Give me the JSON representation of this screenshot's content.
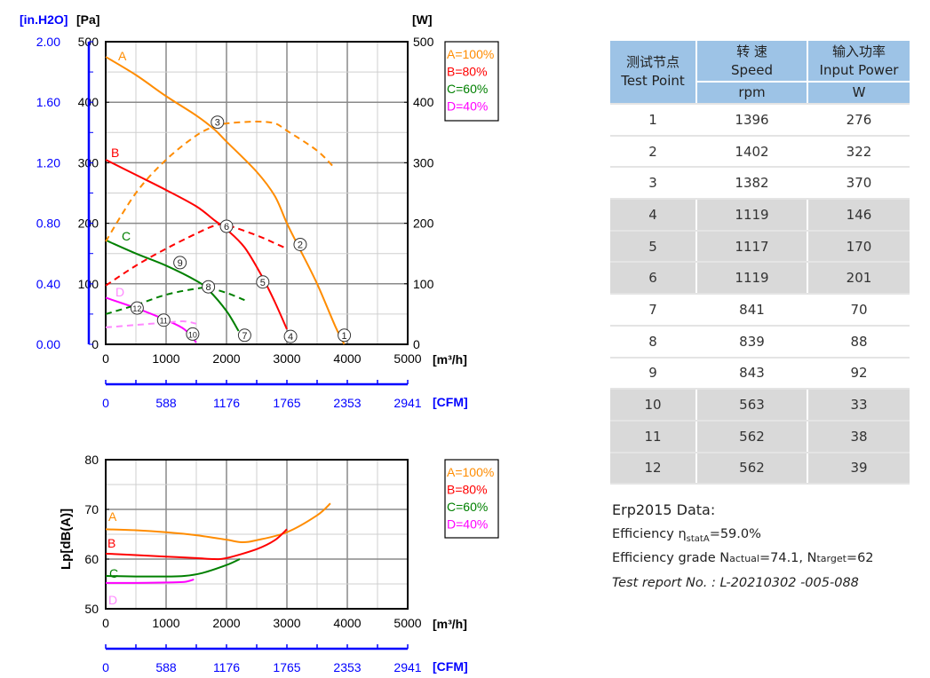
{
  "chart_data": [
    {
      "type": "line",
      "xlabel": "[m³/h]",
      "x2label": "[CFM]",
      "ylabel": "[Pa]",
      "ylabel_alt": "[in.H2O]",
      "y2label": "[W]",
      "xlim": [
        0,
        5000
      ],
      "ylim": [
        0,
        500
      ],
      "y2lim": [
        0,
        500
      ],
      "xticks": [
        "0",
        "1000",
        "2000",
        "3000",
        "4000",
        "5000"
      ],
      "x2ticks": [
        "0",
        "588",
        "1176",
        "1765",
        "2353",
        "2941"
      ],
      "yticks": [
        "0",
        "100",
        "200",
        "300",
        "400",
        "500"
      ],
      "yticks_alt": [
        "0.00",
        "0.40",
        "0.80",
        "1.20",
        "1.60",
        "2.00"
      ],
      "y2ticks": [
        "0",
        "100",
        "200",
        "300",
        "400",
        "500"
      ],
      "grid": true,
      "legend_position": "right",
      "legend": [
        "A=100%",
        "B=80%",
        "C=60%",
        "D=40%"
      ],
      "curve_labels": [
        "A",
        "B",
        "C",
        "D"
      ],
      "series": [
        {
          "name": "A=100%",
          "kind": "pressure",
          "color": "#ff8c00",
          "x": [
            0,
            500,
            1000,
            1500,
            1800,
            2000,
            2500,
            2800,
            3000,
            3200,
            3500,
            3800,
            3950
          ],
          "y": [
            475,
            445,
            410,
            378,
            355,
            335,
            285,
            245,
            200,
            160,
            100,
            30,
            0
          ]
        },
        {
          "name": "B=80%",
          "kind": "pressure",
          "color": "#ff0000",
          "x": [
            0,
            500,
            1000,
            1500,
            1800,
            2000,
            2300,
            2600,
            2800,
            3000
          ],
          "y": [
            305,
            280,
            255,
            228,
            205,
            190,
            160,
            110,
            70,
            25
          ]
        },
        {
          "name": "C=60%",
          "kind": "pressure",
          "color": "#008000",
          "x": [
            0,
            500,
            1000,
            1500,
            1700,
            2000,
            2200
          ],
          "y": [
            172,
            150,
            130,
            105,
            90,
            55,
            22
          ]
        },
        {
          "name": "D=40%",
          "kind": "pressure",
          "color": "#ff00ff",
          "x": [
            0,
            500,
            1000,
            1300,
            1500
          ],
          "y": [
            77,
            60,
            40,
            25,
            3
          ]
        },
        {
          "name": "A=100%",
          "kind": "power",
          "color": "#ff8c00",
          "x": [
            0,
            500,
            1000,
            1500,
            1800,
            2000,
            2500,
            2800,
            3000,
            3500,
            3800
          ],
          "y": [
            170,
            250,
            305,
            345,
            360,
            365,
            368,
            365,
            353,
            320,
            290
          ]
        },
        {
          "name": "B=80%",
          "kind": "power",
          "color": "#ff0000",
          "x": [
            0,
            500,
            1000,
            1500,
            1800,
            2000,
            2500,
            2800,
            3000
          ],
          "y": [
            97,
            130,
            158,
            183,
            196,
            197,
            180,
            167,
            158
          ]
        },
        {
          "name": "C=60%",
          "kind": "power",
          "color": "#008000",
          "x": [
            0,
            500,
            1000,
            1500,
            1700,
            2000,
            2300
          ],
          "y": [
            50,
            65,
            82,
            92,
            93,
            85,
            73
          ]
        },
        {
          "name": "D=40%",
          "kind": "power",
          "color": "#ff88ff",
          "x": [
            0,
            500,
            1000,
            1300,
            1500
          ],
          "y": [
            28,
            32,
            36,
            38,
            34
          ]
        }
      ],
      "test_points": [
        {
          "label": "1",
          "x": 3950,
          "y": 15
        },
        {
          "label": "2",
          "x": 3220,
          "y": 165
        },
        {
          "label": "3",
          "x": 1850,
          "y": 367
        },
        {
          "label": "4",
          "x": 3060,
          "y": 13
        },
        {
          "label": "5",
          "x": 2600,
          "y": 103
        },
        {
          "label": "6",
          "x": 2000,
          "y": 195
        },
        {
          "label": "7",
          "x": 2300,
          "y": 15
        },
        {
          "label": "8",
          "x": 1700,
          "y": 95
        },
        {
          "label": "9",
          "x": 1230,
          "y": 135
        },
        {
          "label": "10",
          "x": 1440,
          "y": 17
        },
        {
          "label": "11",
          "x": 960,
          "y": 40
        },
        {
          "label": "12",
          "x": 520,
          "y": 60
        }
      ]
    },
    {
      "type": "line",
      "xlabel": "[m³/h]",
      "x2label": "[CFM]",
      "ylabel": "Lp[dB(A)]",
      "xlim": [
        0,
        5000
      ],
      "ylim": [
        50,
        80
      ],
      "xticks": [
        "0",
        "1000",
        "2000",
        "3000",
        "4000",
        "5000"
      ],
      "x2ticks": [
        "0",
        "588",
        "1176",
        "1765",
        "2353",
        "2941"
      ],
      "yticks": [
        "50",
        "60",
        "70",
        "80"
      ],
      "grid": true,
      "legend_position": "right",
      "legend": [
        "A=100%",
        "B=80%",
        "C=60%",
        "D=40%"
      ],
      "curve_labels": [
        "A",
        "B",
        "C",
        "D"
      ],
      "series": [
        {
          "name": "A=100%",
          "color": "#ff8c00",
          "x": [
            0,
            500,
            1000,
            1500,
            2000,
            2250,
            2500,
            3000,
            3500,
            3720
          ],
          "y": [
            66,
            65.8,
            65.4,
            64.8,
            63.9,
            63.4,
            63.8,
            65.4,
            68.8,
            71.2
          ]
        },
        {
          "name": "B=80%",
          "color": "#ff0000",
          "x": [
            0,
            500,
            1000,
            1500,
            1800,
            2000,
            2500,
            2800,
            3000
          ],
          "y": [
            61.1,
            60.8,
            60.5,
            60.2,
            60,
            60.2,
            62,
            63.8,
            66
          ]
        },
        {
          "name": "C=60%",
          "color": "#008000",
          "x": [
            0,
            500,
            1000,
            1300,
            1600,
            2000,
            2220
          ],
          "y": [
            56.6,
            56.5,
            56.5,
            56.6,
            57.2,
            58.8,
            60
          ]
        },
        {
          "name": "D=40%",
          "color": "#ff00ff",
          "x": [
            0,
            500,
            1000,
            1300,
            1460
          ],
          "y": [
            55.2,
            55.2,
            55.3,
            55.4,
            55.9
          ]
        }
      ]
    }
  ],
  "table": {
    "headers": {
      "test_point_cn": "测试节点",
      "test_point_en": "Test Point",
      "speed_cn": "转 速",
      "speed_en": "Speed",
      "speed_unit": "rpm",
      "power_cn": "输入功率",
      "power_en": "Input Power",
      "power_unit": "W"
    },
    "rows": [
      {
        "point": "1",
        "speed": "1396",
        "power": "276"
      },
      {
        "point": "2",
        "speed": "1402",
        "power": "322"
      },
      {
        "point": "3",
        "speed": "1382",
        "power": "370"
      },
      {
        "point": "4",
        "speed": "1119",
        "power": "146"
      },
      {
        "point": "5",
        "speed": "1117",
        "power": "170"
      },
      {
        "point": "6",
        "speed": "1119",
        "power": "201"
      },
      {
        "point": "7",
        "speed": "841",
        "power": "70"
      },
      {
        "point": "8",
        "speed": "839",
        "power": "88"
      },
      {
        "point": "9",
        "speed": "843",
        "power": "92"
      },
      {
        "point": "10",
        "speed": "563",
        "power": "33"
      },
      {
        "point": "11",
        "speed": "562",
        "power": "38"
      },
      {
        "point": "12",
        "speed": "562",
        "power": "39"
      }
    ]
  },
  "erp": {
    "title": "Erp2015  Data:",
    "efficiency_label": "Efficiency η",
    "efficiency_sub": "statA",
    "efficiency_value": "=59.0%",
    "grade_label": "Efficiency grade  N",
    "grade_actual_sub": "actual",
    "grade_actual_value": "=74.1, N",
    "grade_target_sub": "target",
    "grade_target_value": "=62",
    "report": "Test report No. : L-20210302 -005-088"
  },
  "colors": {
    "axis_alt": "#0000ff",
    "header_bg": "#9dc3e6",
    "gray_row": "#d9d9d9"
  }
}
